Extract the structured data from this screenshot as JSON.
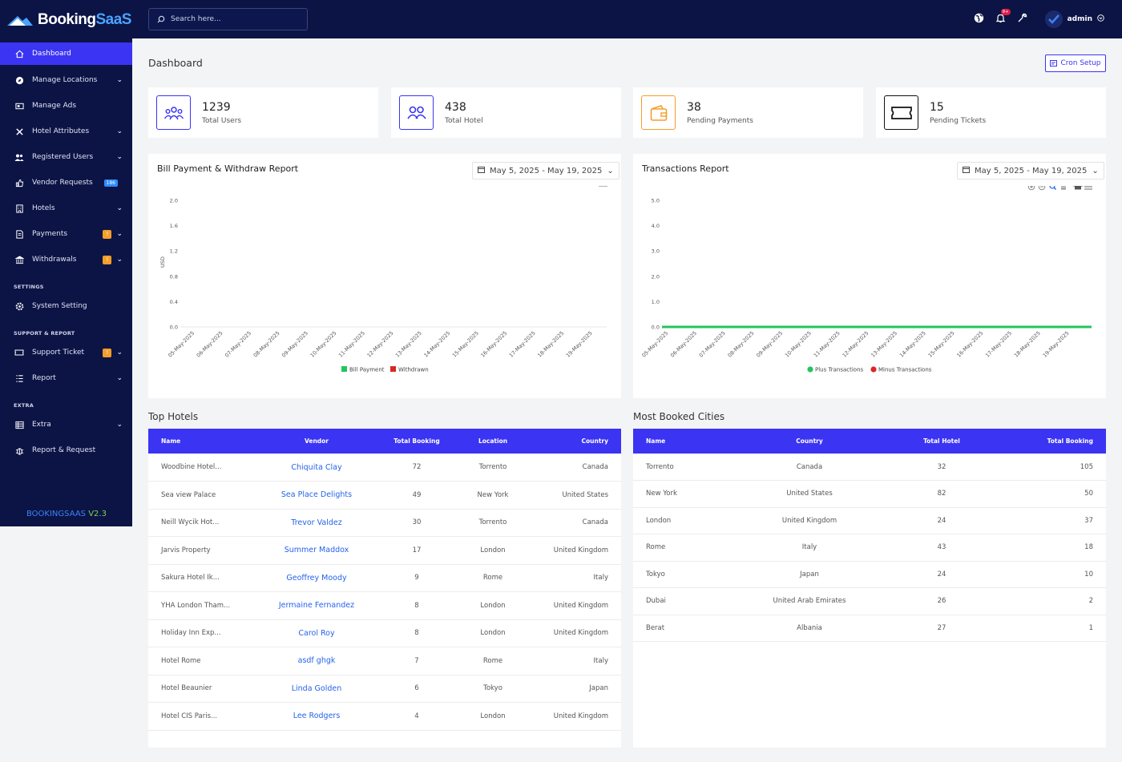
{
  "brand": {
    "prefix": "Booking",
    "suffix": "SaaS"
  },
  "sidebar": {
    "items": [
      {
        "label": "Dashboard"
      },
      {
        "label": "Manage Locations"
      },
      {
        "label": "Manage Ads"
      },
      {
        "label": "Hotel Attributes"
      },
      {
        "label": "Registered Users"
      },
      {
        "label": "Vendor Requests",
        "badge": "186"
      },
      {
        "label": "Hotels"
      },
      {
        "label": "Payments",
        "badge": "!"
      },
      {
        "label": "Withdrawals",
        "badge": "!"
      }
    ],
    "settings_title": "SETTINGS",
    "system_setting": "System Setting",
    "support_title": "SUPPORT & REPORT",
    "support_ticket": "Support Ticket",
    "support_badge": "!",
    "report": "Report",
    "extra_title": "EXTRA",
    "extra": "Extra",
    "report_request": "Report & Request",
    "version_name": "BOOKINGSAAS",
    "version_num": "V2.3"
  },
  "topbar": {
    "search_placeholder": "Search here...",
    "notif_badge": "9+",
    "user": "admin"
  },
  "page": {
    "title": "Dashboard",
    "cron_label": "Cron Setup"
  },
  "stats": [
    {
      "value": "1239",
      "label": "Total Users"
    },
    {
      "value": "438",
      "label": "Total Hotel"
    },
    {
      "value": "38",
      "label": "Pending Payments"
    },
    {
      "value": "15",
      "label": "Pending Tickets"
    }
  ],
  "bill_chart": {
    "title": "Bill Payment & Withdraw Report",
    "date_range": "May 5, 2025 - May 19, 2025"
  },
  "trans_chart": {
    "title": "Transactions Report",
    "date_range": "May 5, 2025 - May 19, 2025"
  },
  "chart_data": [
    {
      "type": "bar",
      "title": "Bill Payment & Withdraw Report",
      "ylabel": "USD",
      "ylim": [
        0,
        2.0
      ],
      "yticks": [
        "0.0",
        "0.4",
        "0.8",
        "1.2",
        "1.6",
        "2.0"
      ],
      "categories": [
        "05-May-2025",
        "06-May-2025",
        "07-May-2025",
        "08-May-2025",
        "09-May-2025",
        "10-May-2025",
        "11-May-2025",
        "12-May-2025",
        "13-May-2025",
        "14-May-2025",
        "15-May-2025",
        "16-May-2025",
        "17-May-2025",
        "18-May-2025",
        "19-May-2025"
      ],
      "series": [
        {
          "name": "Bill Payment",
          "color": "#22c55e",
          "values": [
            0,
            0,
            0,
            0,
            0,
            0,
            0,
            0,
            0,
            0,
            0,
            0,
            0,
            0,
            0
          ]
        },
        {
          "name": "Withdrawn",
          "color": "#dc2626",
          "values": [
            0,
            0,
            0,
            0,
            0,
            0,
            0,
            0,
            0,
            0,
            0,
            0,
            0,
            0,
            0
          ]
        }
      ],
      "legend": "bottom"
    },
    {
      "type": "line",
      "title": "Transactions Report",
      "ylim": [
        0,
        5.0
      ],
      "yticks": [
        "0.0",
        "1.0",
        "2.0",
        "3.0",
        "4.0",
        "5.0"
      ],
      "categories": [
        "05-May-2025",
        "06-May-2025",
        "07-May-2025",
        "08-May-2025",
        "09-May-2025",
        "10-May-2025",
        "11-May-2025",
        "12-May-2025",
        "13-May-2025",
        "14-May-2025",
        "15-May-2025",
        "16-May-2025",
        "17-May-2025",
        "18-May-2025",
        "19-May-2025"
      ],
      "series": [
        {
          "name": "Plus Transactions",
          "color": "#22c55e",
          "values": [
            0,
            0,
            0,
            0,
            0,
            0,
            0,
            0,
            0,
            0,
            0,
            0,
            0,
            0,
            0
          ]
        },
        {
          "name": "Minus Transactions",
          "color": "#dc2626",
          "values": [
            0,
            0,
            0,
            0,
            0,
            0,
            0,
            0,
            0,
            0,
            0,
            0,
            0,
            0,
            0
          ]
        }
      ],
      "legend": "bottom"
    }
  ],
  "top_hotels": {
    "title": "Top Hotels",
    "headers": [
      "Name",
      "Vendor",
      "Total Booking",
      "Location",
      "Country"
    ],
    "rows": [
      [
        "Woodbine Hotel...",
        "Chiquita Clay",
        "72",
        "Torrento",
        "Canada"
      ],
      [
        "Sea view Palace",
        "Sea Place Delights",
        "49",
        "New York",
        "United States"
      ],
      [
        "Neill Wycik Hot...",
        "Trevor Valdez",
        "30",
        "Torrento",
        "Canada"
      ],
      [
        "Jarvis Property",
        "Summer Maddox",
        "17",
        "London",
        "United Kingdom"
      ],
      [
        "Sakura Hotel Ik...",
        "Geoffrey Moody",
        "9",
        "Rome",
        "Italy"
      ],
      [
        "YHA London Tham...",
        "Jermaine Fernandez",
        "8",
        "London",
        "United Kingdom"
      ],
      [
        "Holiday Inn Exp...",
        "Carol Roy",
        "8",
        "London",
        "United Kingdom"
      ],
      [
        "Hotel Rome",
        "asdf ghgk",
        "7",
        "Rome",
        "Italy"
      ],
      [
        "Hotel Beaunier",
        "Linda Golden",
        "6",
        "Tokyo",
        "Japan"
      ],
      [
        "Hotel CIS Paris...",
        "Lee Rodgers",
        "4",
        "London",
        "United Kingdom"
      ]
    ]
  },
  "cities": {
    "title": "Most Booked Cities",
    "headers": [
      "Name",
      "Country",
      "Total Hotel",
      "Total Booking"
    ],
    "rows": [
      [
        "Torrento",
        "Canada",
        "32",
        "105"
      ],
      [
        "New York",
        "United States",
        "82",
        "50"
      ],
      [
        "London",
        "United Kingdom",
        "24",
        "37"
      ],
      [
        "Rome",
        "Italy",
        "43",
        "18"
      ],
      [
        "Tokyo",
        "Japan",
        "24",
        "10"
      ],
      [
        "Dubai",
        "United Arab Emirates",
        "26",
        "2"
      ],
      [
        "Berat",
        "Albania",
        "27",
        "1"
      ]
    ]
  }
}
